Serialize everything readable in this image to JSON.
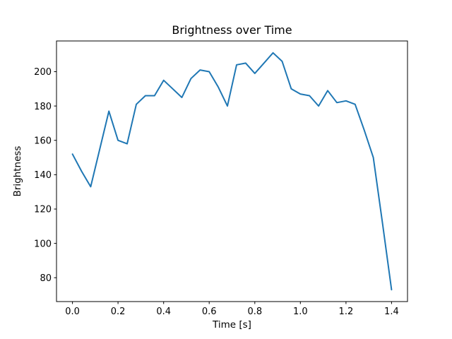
{
  "figure": {
    "background_color": "#ffffff",
    "axis_color": "#000000",
    "text_color": "#000000"
  },
  "chart_data": {
    "type": "line",
    "title": "Brightness over Time",
    "xlabel": "Time [s]",
    "ylabel": "Brightness",
    "grid": false,
    "legend": null,
    "line_color": "#1f77b4",
    "xlim": [
      -0.07,
      1.47
    ],
    "ylim": [
      66.1,
      217.9
    ],
    "xticks": {
      "values": [
        0.0,
        0.2,
        0.4,
        0.6,
        0.8,
        1.0,
        1.2,
        1.4
      ],
      "labels": [
        "0.0",
        "0.2",
        "0.4",
        "0.6",
        "0.8",
        "1.0",
        "1.2",
        "1.4"
      ]
    },
    "yticks": {
      "values": [
        80,
        100,
        120,
        140,
        160,
        180,
        200
      ],
      "labels": [
        "80",
        "100",
        "120",
        "140",
        "160",
        "180",
        "200"
      ]
    },
    "x": [
      0.0,
      0.04,
      0.08,
      0.12,
      0.16,
      0.2,
      0.24,
      0.28,
      0.32,
      0.36,
      0.4,
      0.44,
      0.48,
      0.52,
      0.56,
      0.6,
      0.64,
      0.68,
      0.72,
      0.76,
      0.8,
      0.84,
      0.88,
      0.92,
      0.96,
      1.0,
      1.04,
      1.08,
      1.12,
      1.16,
      1.2,
      1.24,
      1.28,
      1.32,
      1.36,
      1.4
    ],
    "y": [
      152,
      142,
      133,
      155,
      177,
      160,
      158,
      181,
      186,
      186,
      195,
      190,
      185,
      196,
      201,
      200,
      191,
      180,
      204,
      205,
      199,
      205,
      211,
      206,
      190,
      187,
      186,
      180,
      189,
      182,
      183,
      181,
      166,
      150,
      112,
      73
    ]
  }
}
